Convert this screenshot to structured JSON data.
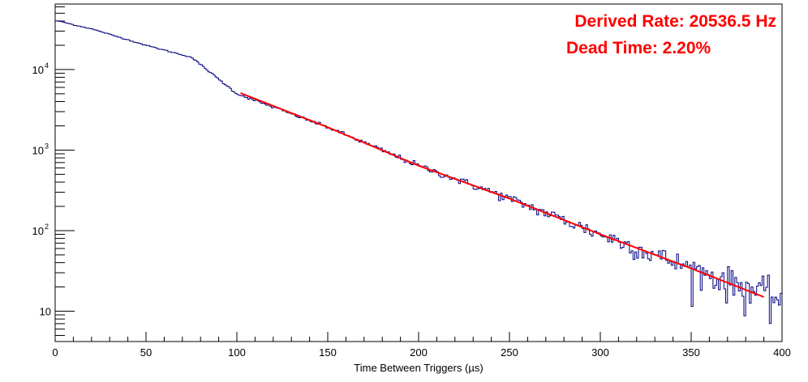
{
  "chart_data": {
    "type": "histogram",
    "xlabel": "Time Between Triggers (µs)",
    "ylabel": "",
    "xlim": [
      0,
      400
    ],
    "ylim": [
      4.2,
      65000
    ],
    "yscale": "log",
    "grid": false,
    "legend": "none",
    "x_ticks": [
      "0",
      "50",
      "100",
      "150",
      "200",
      "250",
      "300",
      "350",
      "400"
    ],
    "y_ticks": [
      {
        "value": 10,
        "label": "10"
      },
      {
        "value": 100,
        "label": "10",
        "exp": "2"
      },
      {
        "value": 1000,
        "label": "10",
        "exp": "3"
      },
      {
        "value": 10000,
        "label": "10",
        "exp": "4"
      }
    ],
    "series": [
      {
        "kind": "histogram",
        "color": "#000080",
        "bin_width_us": 1,
        "x": [
          0,
          2,
          5,
          10,
          20,
          50,
          75,
          100,
          150,
          200,
          250,
          300,
          350,
          400
        ],
        "y": [
          40000,
          40000,
          38500,
          36000,
          32000,
          20000,
          14200,
          5000,
          1920,
          640,
          250,
          90,
          34,
          14
        ]
      },
      {
        "kind": "fit",
        "color": "#ff0000",
        "x": [
          102,
          150,
          200,
          250,
          300,
          350,
          390
        ],
        "y": [
          5100,
          1920,
          640,
          250,
          90,
          34,
          15
        ]
      }
    ],
    "annotations": [
      {
        "text": "Derived Rate: 20536.5 Hz",
        "color": "#ff0000"
      },
      {
        "text": "Dead Time: 2.20%",
        "color": "#ff0000"
      }
    ]
  }
}
